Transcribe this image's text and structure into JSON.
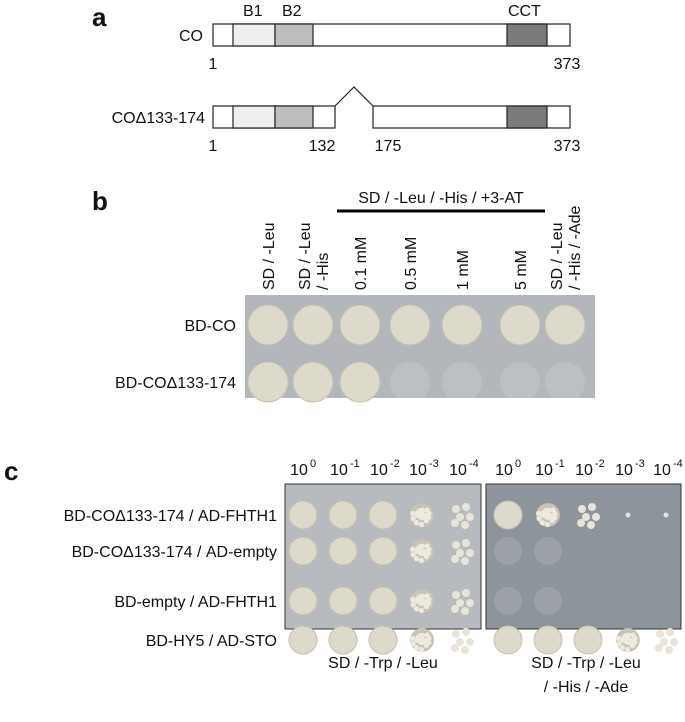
{
  "panel_a": {
    "label": "a",
    "constructs": [
      {
        "name": "CO",
        "domains": [
          "B1",
          "B2",
          "CCT"
        ],
        "positions": [
          "1",
          "373"
        ]
      },
      {
        "name": "COΔ133-174",
        "positions": [
          "1",
          "132",
          "175",
          "373"
        ]
      }
    ]
  },
  "panel_b": {
    "label": "b",
    "group_header": "SD / -Leu / -His / +3-AT",
    "columns": [
      [
        "SD / -Leu"
      ],
      [
        "SD / -Leu",
        "/ -His"
      ],
      [
        "0.1 mM"
      ],
      [
        "0.5 mM"
      ],
      [
        "1 mM"
      ],
      [
        "5 mM"
      ],
      [
        "SD / -Leu",
        "/ -His / -Ade"
      ]
    ],
    "rows": [
      "BD-CO",
      "BD-COΔ133-174"
    ]
  },
  "panel_c": {
    "label": "c",
    "dilutions": [
      {
        "base": "10",
        "exp": "0"
      },
      {
        "base": "10",
        "exp": "-1"
      },
      {
        "base": "10",
        "exp": "-2"
      },
      {
        "base": "10",
        "exp": "-3"
      },
      {
        "base": "10",
        "exp": "-4"
      }
    ],
    "rows": [
      "BD-COΔ133-174 / AD-FHTH1",
      "BD-COΔ133-174 / AD-empty",
      "BD-empty / AD-FHTH1",
      "BD-HY5 / AD-STO"
    ],
    "media": [
      [
        "SD / -Trp / -Leu"
      ],
      [
        "SD / -Trp / -Leu",
        "/ -His / -Ade"
      ]
    ]
  }
}
